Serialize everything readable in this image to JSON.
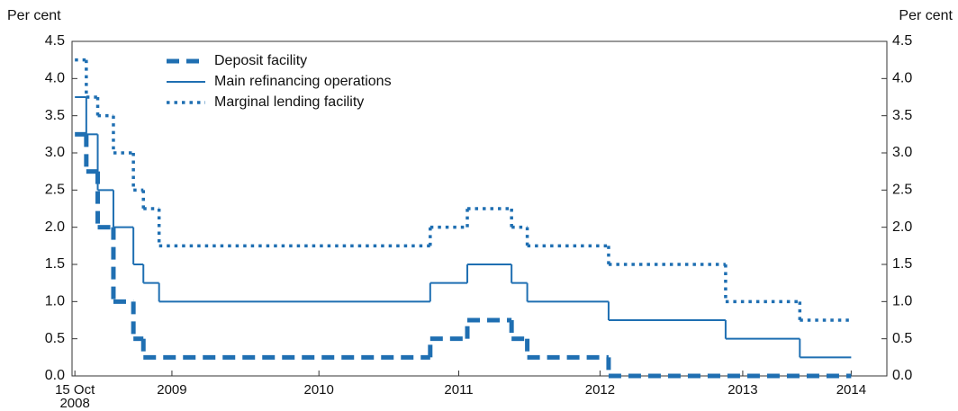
{
  "chart_data": {
    "type": "step",
    "y_label": "Per cent",
    "y2_label": "Per cent",
    "xlim": [
      2008.77,
      2014.48
    ],
    "xticks": [
      {
        "value": 2008.79,
        "label": "15 Oct\n2008"
      },
      {
        "value": 2009.47,
        "label": "2009"
      },
      {
        "value": 2010.5,
        "label": "2010"
      },
      {
        "value": 2011.48,
        "label": "2011"
      },
      {
        "value": 2012.47,
        "label": "2012"
      },
      {
        "value": 2013.47,
        "label": "2013"
      },
      {
        "value": 2014.23,
        "label": "2014"
      }
    ],
    "ylim": [
      0,
      4.5
    ],
    "yticks": [
      {
        "value": 0,
        "label": "0.0"
      },
      {
        "value": 0.5,
        "label": "0.5"
      },
      {
        "value": 1,
        "label": "1.0"
      },
      {
        "value": 1.5,
        "label": "1.5"
      },
      {
        "value": 2,
        "label": "2.0"
      },
      {
        "value": 2.5,
        "label": "2.5"
      },
      {
        "value": 3,
        "label": "3.0"
      },
      {
        "value": 3.5,
        "label": "3.5"
      },
      {
        "value": 4,
        "label": "4.0"
      },
      {
        "value": 4.5,
        "label": "4.5"
      }
    ],
    "y2lim": [
      0,
      4.5
    ],
    "y2ticks": [
      {
        "value": 0,
        "label": "0.0"
      },
      {
        "value": 0.5,
        "label": "0.5"
      },
      {
        "value": 1,
        "label": "1.0"
      },
      {
        "value": 1.5,
        "label": "1.5"
      },
      {
        "value": 2,
        "label": "2.0"
      },
      {
        "value": 2.5,
        "label": "2.5"
      },
      {
        "value": 3,
        "label": "3.0"
      },
      {
        "value": 3.5,
        "label": "3.5"
      },
      {
        "value": 4,
        "label": "4.0"
      },
      {
        "value": 4.5,
        "label": "4.5"
      }
    ],
    "legend": "upper left",
    "series": [
      {
        "name": "Deposit facility",
        "color": "#1f6fb2",
        "dash": "dashed",
        "x": [
          2008.79,
          2008.87,
          2008.95,
          2009.06,
          2009.2,
          2009.27,
          2011.28,
          2011.54,
          2011.85,
          2011.96,
          2012.53,
          2014.23
        ],
        "values": [
          3.25,
          2.75,
          2.0,
          1.0,
          0.5,
          0.25,
          0.5,
          0.75,
          0.5,
          0.25,
          0.0,
          0.0
        ]
      },
      {
        "name": "Main refinancing operations",
        "color": "#1f6fb2",
        "dash": "solid",
        "x": [
          2008.79,
          2008.87,
          2008.95,
          2009.06,
          2009.2,
          2009.27,
          2009.38,
          2011.28,
          2011.54,
          2011.85,
          2011.96,
          2012.53,
          2013.35,
          2013.87,
          2014.23
        ],
        "values": [
          3.75,
          3.25,
          2.5,
          2.0,
          1.5,
          1.25,
          1.0,
          1.25,
          1.5,
          1.25,
          1.0,
          0.75,
          0.5,
          0.25,
          0.25
        ]
      },
      {
        "name": "Marginal lending facility",
        "color": "#1f6fb2",
        "dash": "dotted",
        "x": [
          2008.79,
          2008.87,
          2008.95,
          2009.06,
          2009.2,
          2009.27,
          2009.38,
          2011.28,
          2011.54,
          2011.85,
          2011.96,
          2012.53,
          2013.35,
          2013.87,
          2014.23
        ],
        "values": [
          4.25,
          3.75,
          3.5,
          3.0,
          2.5,
          2.25,
          1.75,
          2.0,
          2.25,
          2.0,
          1.75,
          1.5,
          1.0,
          0.75,
          0.75
        ]
      }
    ]
  }
}
